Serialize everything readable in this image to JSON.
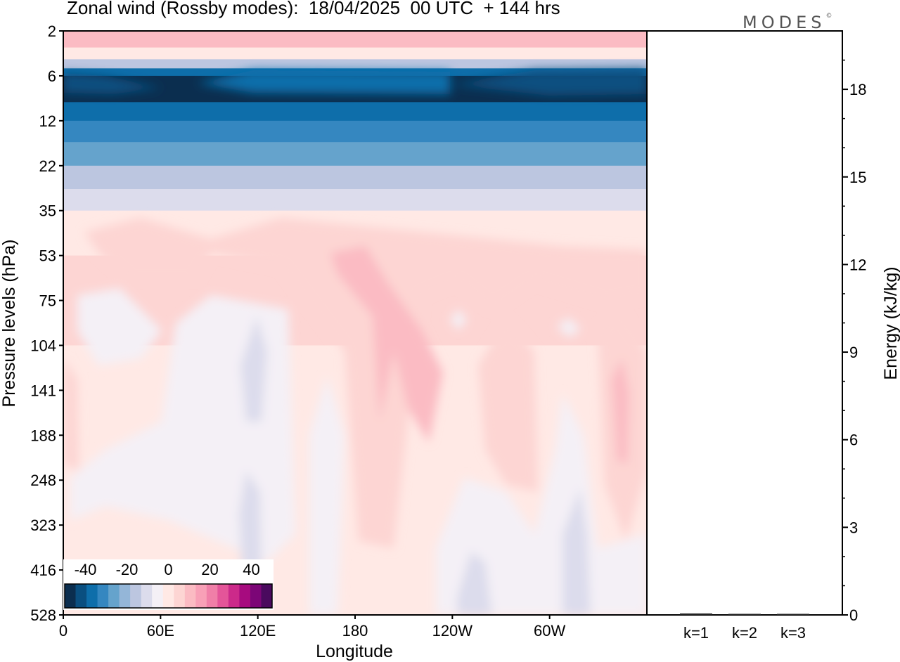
{
  "title": "Zonal wind (Rossby modes):  18/04/2025  00 UTC  + 144 hrs",
  "logo": "MODES",
  "logo_mark": "©",
  "chart_data": [
    {
      "type": "heatmap",
      "title": "Zonal wind (Rossby modes):  18/04/2025  00 UTC  + 144 hrs",
      "xlabel": "Longitude",
      "ylabel": "Pressure levels (hPa)",
      "x_ticks": [
        "0",
        "60E",
        "120E",
        "180",
        "120W",
        "60W"
      ],
      "x_tick_degrees": [
        0,
        60,
        120,
        180,
        240,
        300
      ],
      "xlim": [
        0,
        360
      ],
      "y_ticks": [
        "2",
        "6",
        "12",
        "22",
        "35",
        "53",
        "75",
        "104",
        "141",
        "188",
        "248",
        "323",
        "416",
        "528"
      ],
      "y_axis": "pressure levels, evenly spaced, top = 2 hPa",
      "colorbar": {
        "tick_labels": [
          "-40",
          "-20",
          "0",
          "20",
          "40"
        ],
        "tick_values": [
          -40,
          -20,
          0,
          20,
          40
        ],
        "range": [
          -50,
          50
        ],
        "step": 5,
        "colors": [
          "#0b2e4f",
          "#0a4f80",
          "#0e6eaa",
          "#3587c0",
          "#65a3cc",
          "#94b6d8",
          "#bcc6e0",
          "#dcdcec",
          "#f4f0f6",
          "#ffe9e5",
          "#fdd5d3",
          "#fbbbc3",
          "#f8a0b7",
          "#f07fa8",
          "#e45599",
          "#cc2a8a",
          "#a70b7f",
          "#7c0677",
          "#4a0a5e"
        ]
      },
      "zonal_mean_profile": [
        {
          "level": "2",
          "value": 10
        },
        {
          "level": "3",
          "value": 3
        },
        {
          "level": "4",
          "value": -12
        },
        {
          "level": "5",
          "value": -32
        },
        {
          "level": "6",
          "value": -42
        },
        {
          "level": "9",
          "value": -34
        },
        {
          "level": "12",
          "value": -28
        },
        {
          "level": "16",
          "value": -22
        },
        {
          "level": "22",
          "value": -14
        },
        {
          "level": "28",
          "value": -6
        },
        {
          "level": "35",
          "value": 1
        },
        {
          "level": "53",
          "value": 6
        },
        {
          "level": "104",
          "value": 3
        },
        {
          "level": "248",
          "value": 1
        },
        {
          "level": "528",
          "value": -1
        }
      ]
    },
    {
      "type": "bar",
      "ylabel": "Energy (kJ/kg)",
      "categories": [
        "k=1",
        "k=2",
        "k=3"
      ],
      "values": [
        0.05,
        0.03,
        0.02
      ],
      "y_ticks": [
        "0",
        "3",
        "6",
        "9",
        "12",
        "15",
        "18"
      ],
      "ylim": [
        0,
        20
      ]
    }
  ]
}
